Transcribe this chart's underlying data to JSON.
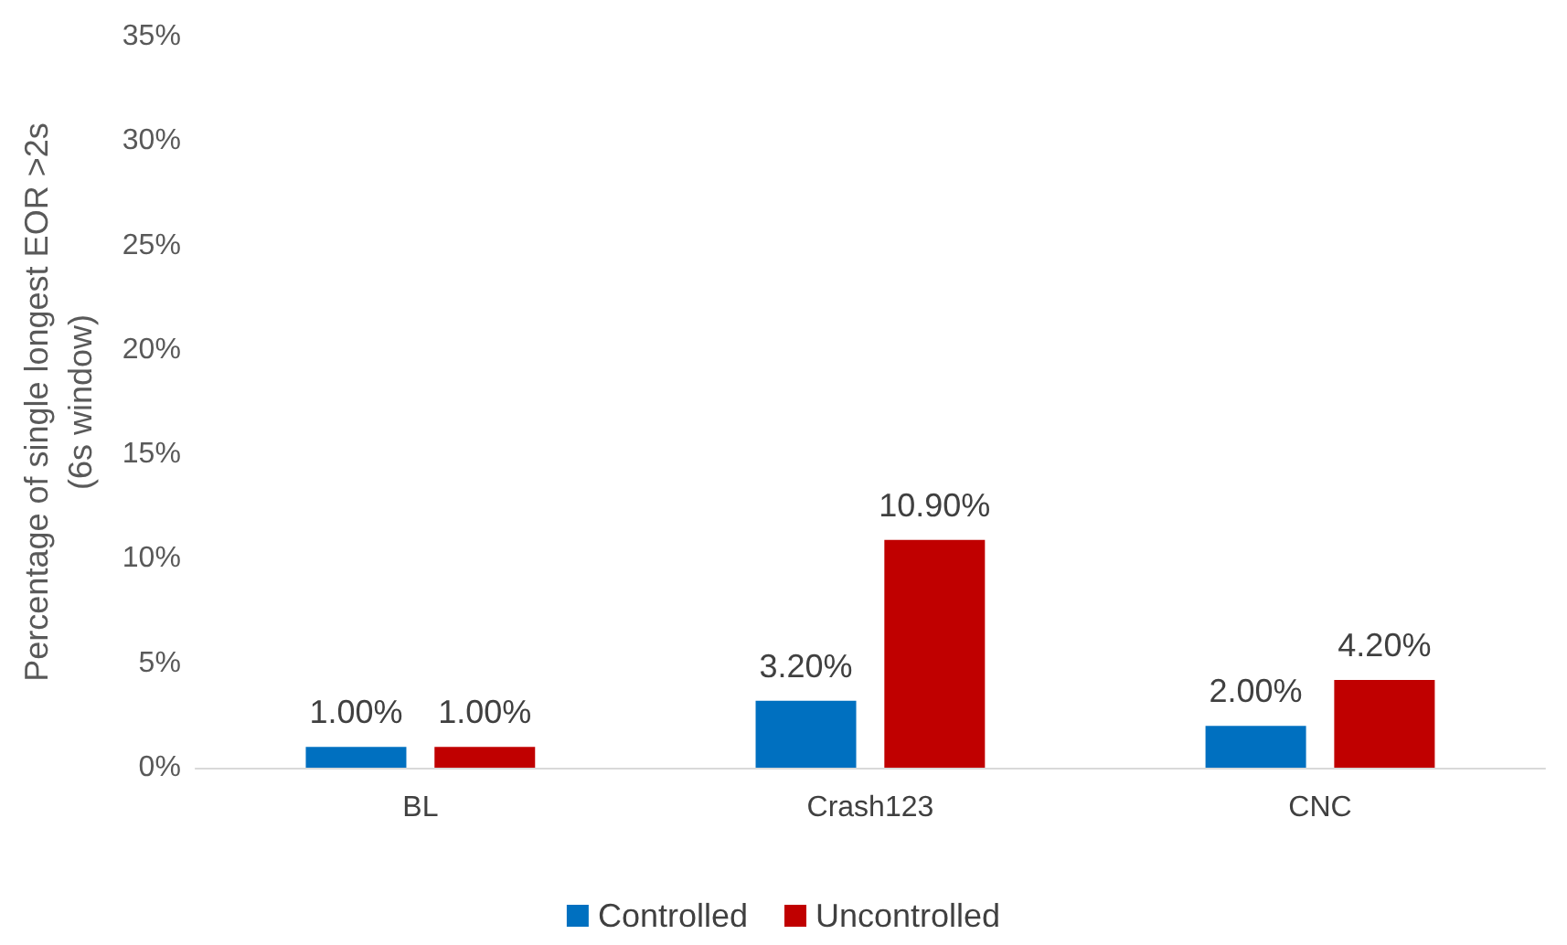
{
  "chart_data": {
    "type": "bar",
    "ylabel": "Percentage of single longest EOR >2s\n(6s window)",
    "categories": [
      "BL",
      "Crash123",
      "CNC"
    ],
    "series": [
      {
        "name": "Controlled",
        "color": "#0070c0",
        "values": [
          1.0,
          3.2,
          2.0
        ],
        "value_labels": [
          "1.00%",
          "3.20%",
          "2.00%"
        ]
      },
      {
        "name": "Uncontrolled",
        "color": "#c00000",
        "values": [
          1.0,
          10.9,
          4.2
        ],
        "value_labels": [
          "1.00%",
          "10.90%",
          "4.20%"
        ]
      }
    ],
    "ylim": [
      0,
      35
    ],
    "yticks": [
      {
        "value": 0,
        "label": "0%"
      },
      {
        "value": 5,
        "label": "5%"
      },
      {
        "value": 10,
        "label": "10%"
      },
      {
        "value": 15,
        "label": "15%"
      },
      {
        "value": 20,
        "label": "20%"
      },
      {
        "value": 25,
        "label": "25%"
      },
      {
        "value": 30,
        "label": "30%"
      },
      {
        "value": 35,
        "label": "35%"
      }
    ],
    "grid": false,
    "legend": "bottom"
  }
}
